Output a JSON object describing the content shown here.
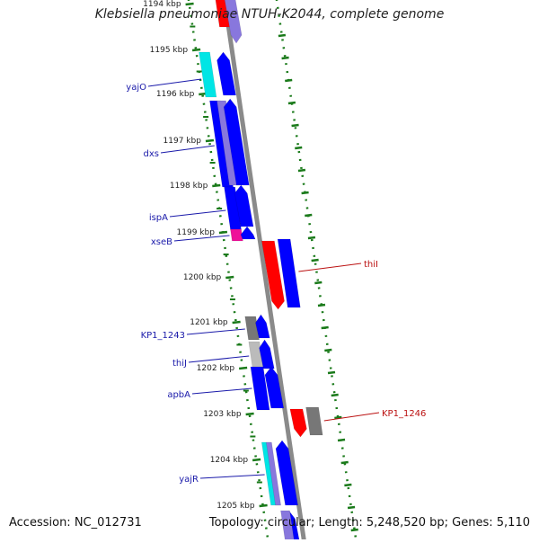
{
  "header": {
    "title": "Klebsiella pneumoniae NTUH-K2044, complete genome"
  },
  "footer": {
    "accession": "Accession: NC_012731",
    "topology": "Topology: circular; Length: 5,248,520 bp; Genes: 5,110"
  },
  "colors": {
    "blue": "#0000ff",
    "red": "#ff0000",
    "cyan": "#00e5e5",
    "magenta": "#ee1199",
    "gray": "#777777",
    "light_gray": "#bbbbbb",
    "lavender": "#8877dd",
    "backbone": "#8a8a8a",
    "tick_green": "#1a7a1a",
    "label_blue": "#1a1aaa",
    "label_red": "#bb1111"
  },
  "diagram": {
    "kbp_ticks": [
      "1194 kbp",
      "1195 kbp",
      "1196 kbp",
      "1197 kbp",
      "1198 kbp",
      "1199 kbp",
      "1200 kbp",
      "1201 kbp",
      "1202 kbp",
      "1203 kbp",
      "1204 kbp",
      "1205 kbp"
    ],
    "gene_labels_left": [
      "yajO",
      "dxs",
      "ispA",
      "xseB",
      "KP1_1243",
      "thiJ",
      "apbA",
      "yajR"
    ],
    "gene_labels_right": [
      "thiI",
      "KP1_1246"
    ]
  }
}
